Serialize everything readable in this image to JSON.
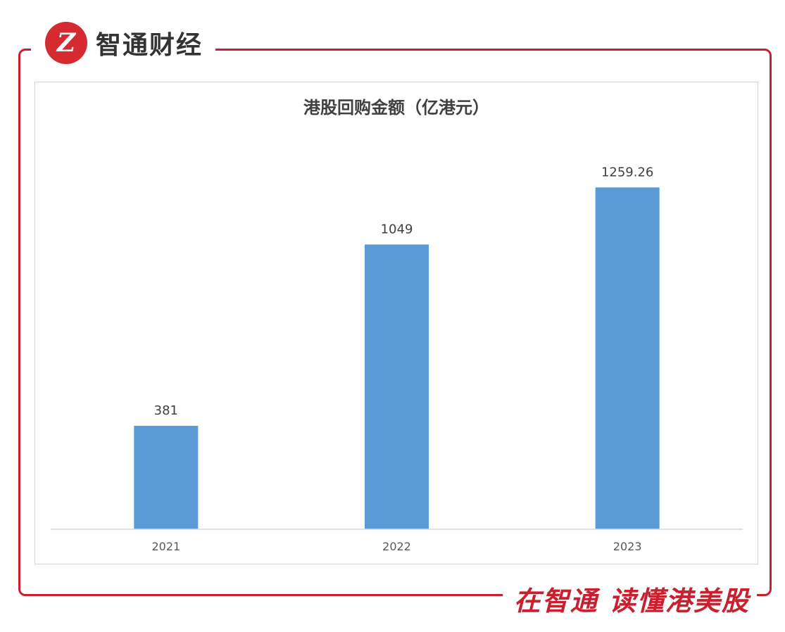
{
  "brand": {
    "logo_text": "Z",
    "name": "智通财经"
  },
  "slogan": "在智通 读懂港美股",
  "colors": {
    "frame": "#c8202e",
    "bar": "#5b9bd5",
    "text": "#404040",
    "axis": "#d9d9d9"
  },
  "chart_data": {
    "type": "bar",
    "title": "港股回购金额（亿港元）",
    "categories": [
      "2021",
      "2022",
      "2023"
    ],
    "values": [
      381,
      1049,
      1259.26
    ],
    "value_labels": [
      "381",
      "1049",
      "1259.26"
    ],
    "ylim": [
      0,
      1400
    ],
    "grid": false,
    "legend": "none"
  }
}
